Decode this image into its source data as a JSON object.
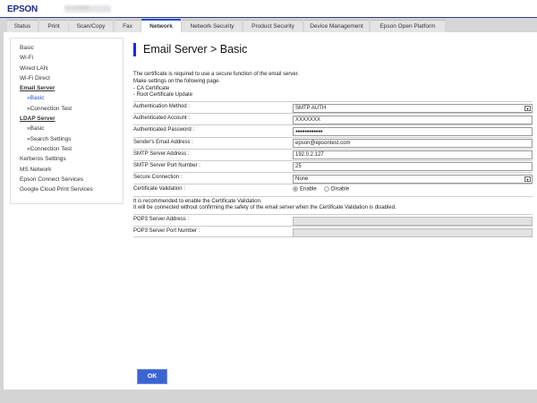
{
  "header": {
    "brand": "EPSON",
    "model": "LX-10000F"
  },
  "tabs": [
    "Status",
    "Print",
    "Scan/Copy",
    "Fax",
    "Network",
    "Network Security",
    "Product Security",
    "Device Management",
    "Epson Open Platform"
  ],
  "active_tab": "Network",
  "sidebar": [
    "Basic",
    "Wi-Fi",
    "Wired LAN",
    "Wi-Fi Direct",
    "Email Server",
    "»Basic",
    "»Connection Test",
    "LDAP Server",
    "»Basic",
    "»Search Settings",
    "»Connection Test",
    "Kerberos Settings",
    "MS Network",
    "Epson Connect Services",
    "Google Cloud Print Services"
  ],
  "page_title": "Email Server > Basic",
  "intro": [
    "The certificate is required to use a secure function of the email server.",
    "Make settings on the following page.",
    "- CA Certificate",
    "- Root Certificate Update"
  ],
  "fields": {
    "auth_method": {
      "label": "Authentication Method :",
      "value": "SMTP AUTH"
    },
    "auth_account": {
      "label": "Authenticated Account :",
      "value": "XXXXXXX"
    },
    "auth_password": {
      "label": "Authenticated Password :",
      "value": "●●●●●●●●●●●●"
    },
    "sender_email": {
      "label": "Sender's Email Address :",
      "value": "epson@epsontest.com"
    },
    "smtp_address": {
      "label": "SMTP Server Address :",
      "value": "192.0.2.127"
    },
    "smtp_port": {
      "label": "SMTP Server Port Number :",
      "value": "25"
    },
    "secure_connection": {
      "label": "Secure Connection :",
      "value": "None"
    },
    "cert_validation": {
      "label": "Certificate Validation :",
      "options": [
        "Enable",
        "Disable"
      ],
      "selected": "Enable"
    },
    "pop3_address": {
      "label": "POP3 Server Address :",
      "value": ""
    },
    "pop3_port": {
      "label": "POP3 Server Port Number :",
      "value": ""
    }
  },
  "note": [
    "It is recommended to enable the Certificate Validation.",
    "It will be connected without confirming the safety of the email server when the Certificate Validation is disabled."
  ],
  "ok_label": "OK"
}
